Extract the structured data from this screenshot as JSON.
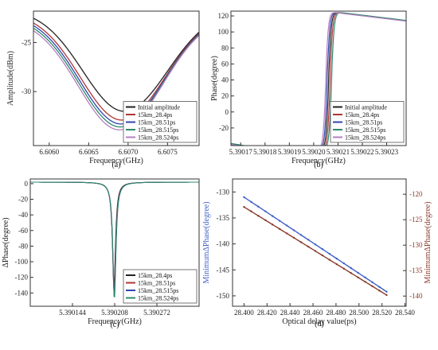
{
  "chart_data": [
    {
      "panel_label": "(a)",
      "type": "line",
      "xlabel": "Frequency(GHz)",
      "ylabel": "Amplitude(dBm)",
      "xlim": [
        6.6058,
        6.6079
      ],
      "ylim": [
        -35.5,
        -21.8
      ],
      "x_ticks": [
        6.606,
        6.6065,
        6.607,
        6.6075
      ],
      "x_tick_labels": [
        "6.6060",
        "6.6065",
        "6.6070",
        "6.6075"
      ],
      "y_ticks": [
        -25,
        -30
      ],
      "y_tick_labels": [
        "-25",
        "-30"
      ],
      "legend": "bottom-right",
      "grid": false,
      "series": [
        {
          "name": "Initial amplitude",
          "color": "#222222",
          "center": 6.60695,
          "min": -32.0,
          "left_top": -21.6,
          "right_top": -21.6
        },
        {
          "name": "15km_28.4ps",
          "color": "#b03535",
          "center": 6.60692,
          "min": -32.9,
          "left_top": -21.9,
          "right_top": -21.8
        },
        {
          "name": "15km_28.51ps",
          "color": "#2f44b0",
          "center": 6.60691,
          "min": -33.3,
          "left_top": -22.1,
          "right_top": -21.9
        },
        {
          "name": "15km_28.515ps",
          "color": "#2e8a6c",
          "center": 6.6069,
          "min": -33.6,
          "left_top": -22.3,
          "right_top": -22.0
        },
        {
          "name": "15km_28.524ps",
          "color": "#b57fc0",
          "center": 6.60689,
          "min": -33.9,
          "left_top": -22.5,
          "right_top": -22.1
        }
      ]
    },
    {
      "panel_label": "(b)",
      "type": "line",
      "xlabel": "Frequency(GHz)",
      "ylabel": "Phase(degree)",
      "xlim": [
        5.390166,
        5.390238
      ],
      "ylim": [
        -42,
        126
      ],
      "x_ticks": [
        5.39017,
        5.39018,
        5.39019,
        5.3902,
        5.39021,
        5.39022,
        5.39023
      ],
      "x_tick_labels": [
        "5.39017",
        "5.39018",
        "5.39019",
        "5.39020",
        "5.39021",
        "5.39022",
        "5.39023"
      ],
      "y_ticks": [
        -20,
        0,
        20,
        40,
        60,
        80,
        100,
        120
      ],
      "y_tick_labels": [
        "-20",
        "0",
        "20",
        "40",
        "60",
        "80",
        "100",
        "120"
      ],
      "legend": "bottom-right",
      "grid": false,
      "series": [
        {
          "name": "Initial amplitude",
          "color": "#222222",
          "x0": 5.3902062
        },
        {
          "name": "15km_28.4ps",
          "color": "#b03535",
          "x0": 5.3902068
        },
        {
          "name": "15km_28.51ps",
          "color": "#2f44b0",
          "x0": 5.3902056
        },
        {
          "name": "15km_28.515ps",
          "color": "#2e8a6c",
          "x0": 5.3902074
        },
        {
          "name": "15km_28.524ps",
          "color": "#b57fc0",
          "x0": 5.390205
        }
      ]
    },
    {
      "panel_label": "(c)",
      "type": "line",
      "xlabel": "Frequency(GHz)",
      "ylabel": "ΔPhase(degree)",
      "xlim": [
        5.39008,
        5.390336
      ],
      "ylim": [
        -157,
        6
      ],
      "x_ticks": [
        5.390144,
        5.390208,
        5.390272
      ],
      "x_tick_labels": [
        "5.390144",
        "5.390208",
        "5.390272"
      ],
      "y_ticks": [
        0,
        -20,
        -40,
        -60,
        -80,
        -100,
        -120,
        -140
      ],
      "y_tick_labels": [
        "0",
        "-20",
        "-40",
        "-60",
        "-80",
        "-100",
        "-120",
        "-140"
      ],
      "legend": "bottom-right",
      "grid": false,
      "series": [
        {
          "name": "15km_28.4ps",
          "color": "#222222",
          "x0": 5.390207,
          "min": -131
        },
        {
          "name": "15km_28.51ps",
          "color": "#b03535",
          "x0": 5.3902072,
          "min": -142
        },
        {
          "name": "15km_28.515ps",
          "color": "#2f44b0",
          "x0": 5.3902074,
          "min": -146
        },
        {
          "name": "15km_28.524ps",
          "color": "#2e8a6c",
          "x0": 5.3902076,
          "min": -148
        }
      ]
    },
    {
      "panel_label": "(d)",
      "type": "line",
      "xlabel": "Optical delay value(ps)",
      "ylabel": "MinimumΔPhase(degree)",
      "y2label": "MinimumΔPhase(degree)",
      "xlim": [
        28.39,
        28.541
      ],
      "ylim": [
        -152,
        -127.5
      ],
      "y2lim": [
        -142,
        -117
      ],
      "x_ticks": [
        28.4,
        28.42,
        28.44,
        28.46,
        28.48,
        28.5,
        28.52,
        28.54
      ],
      "x_tick_labels": [
        "28.400",
        "28.420",
        "28.440",
        "28.460",
        "28.480",
        "28.500",
        "28.520",
        "28.540"
      ],
      "y_ticks": [
        -130,
        -135,
        -140,
        -145,
        -150
      ],
      "y_tick_labels": [
        "-130",
        "-135",
        "-140",
        "-145",
        "-150"
      ],
      "y2_ticks": [
        -120,
        -125,
        -130,
        -135,
        -140
      ],
      "y2_tick_labels": [
        "-120",
        "-125",
        "-130",
        "-135",
        "-140"
      ],
      "grid": false,
      "series": [
        {
          "axis": "left",
          "color": "#3f5fc8",
          "x": [
            28.4,
            28.524
          ],
          "y": [
            -131.0,
            -149.2
          ]
        },
        {
          "axis": "right",
          "color": "#8a3a2a",
          "x": [
            28.4,
            28.524
          ],
          "y": [
            -122.5,
            -139.8
          ]
        }
      ]
    }
  ]
}
